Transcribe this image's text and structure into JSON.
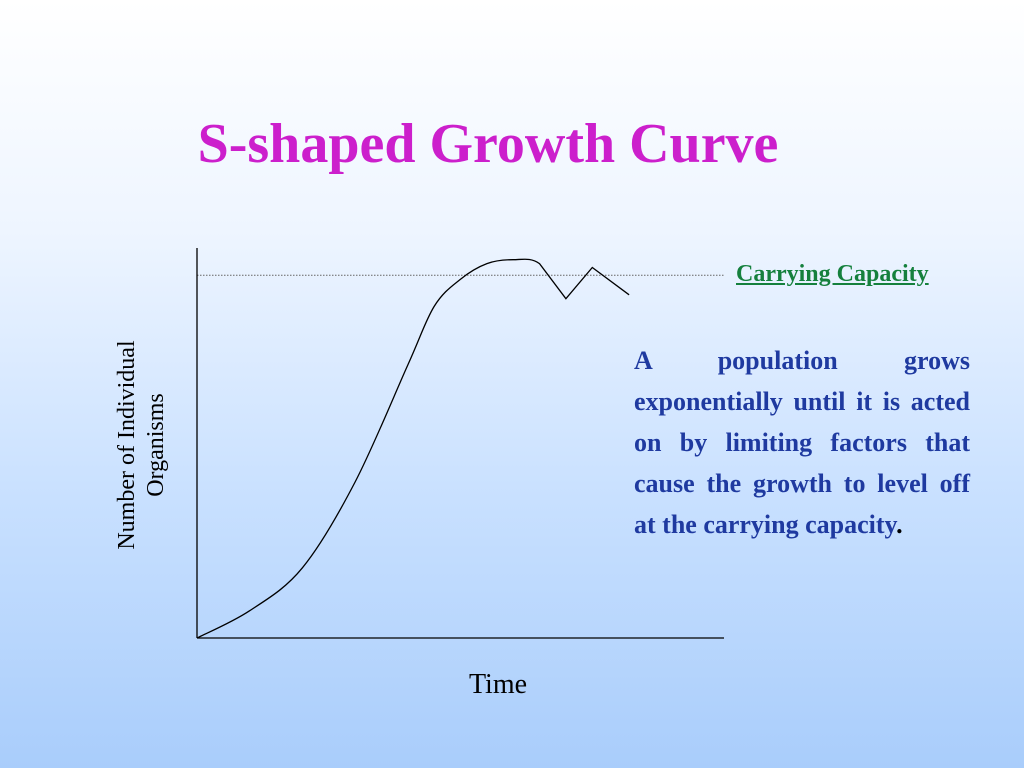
{
  "slide": {
    "title": "S-shaped Growth Curve",
    "description": "A population grows exponentially until it is acted on by limiting factors that cause the growth to level off at the carrying capacity",
    "description_end": "."
  },
  "chart_data": {
    "type": "line",
    "xlabel": "Time",
    "ylabel_lines": [
      "Number of Individual",
      "Organisms"
    ],
    "annotation": "Carrying Capacity",
    "xlim": [
      0,
      100
    ],
    "ylim": [
      0,
      100
    ],
    "carrying_capacity": 93,
    "grid": false,
    "series": [
      {
        "x": [
          0,
          10,
          20,
          30,
          40,
          45,
          50,
          55,
          60,
          65,
          70,
          75
        ],
        "y": [
          0,
          7,
          18,
          40,
          70,
          85,
          92,
          96,
          97,
          96,
          87,
          95
        ],
        "x2": [
          75,
          82
        ],
        "y2": [
          95,
          88
        ]
      }
    ],
    "colors": {
      "title": "#cc1fcc",
      "curve": "#000000",
      "axis": "#000000",
      "capacity_line": "#666666",
      "annotation": "#15803d",
      "description": "#1f3aa0"
    }
  }
}
